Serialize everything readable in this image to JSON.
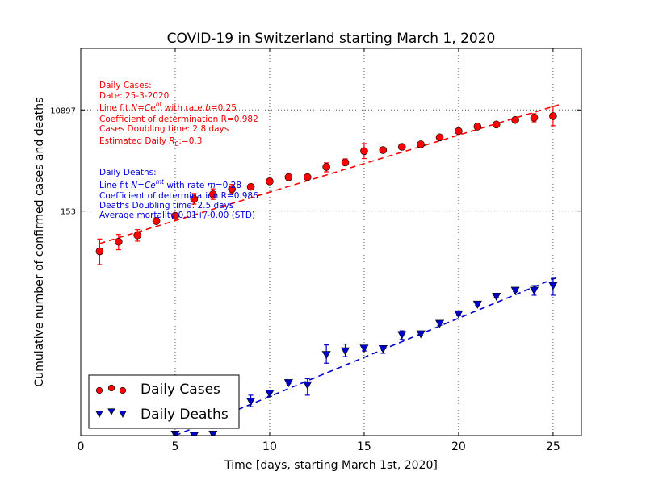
{
  "chart_data": {
    "type": "scatter",
    "title": "COVID-19 in Switzerland starting March 1, 2020",
    "xlabel": "Time [days, starting March 1st, 2020]",
    "ylabel": "Cumulative number of confirmed cases and deaths",
    "xlim": [
      0,
      26.5
    ],
    "ylim_log": [
      0.0118,
      146000
    ],
    "yscale": "log",
    "x_ticks": [
      0,
      5,
      10,
      15,
      20,
      25
    ],
    "y_ticks": [
      153,
      10897
    ],
    "grid": true,
    "legend": "bottom-left",
    "series": [
      {
        "name": "Daily Cases",
        "color": "#ff0000",
        "marker": "circle",
        "x": [
          1,
          2,
          3,
          4,
          5,
          6,
          7,
          8,
          9,
          10,
          11,
          12,
          13,
          14,
          15,
          16,
          17,
          18,
          19,
          20,
          21,
          22,
          23,
          24,
          25
        ],
        "y": [
          28,
          42,
          55,
          100,
          125,
          253,
          310,
          385,
          425,
          535,
          640,
          640,
          985,
          1190,
          1920,
          2000,
          2300,
          2550,
          3420,
          4460,
          5400,
          5890,
          7140,
          7860,
          8400
        ],
        "err_low": [
          16,
          30,
          43,
          90,
          113,
          205,
          250,
          320,
          390,
          480,
          560,
          610,
          800,
          1050,
          1400,
          1800,
          2120,
          2400,
          3200,
          4300,
          5200,
          5600,
          6450,
          6600,
          5600
        ],
        "err_high": [
          47,
          57,
          70,
          115,
          140,
          320,
          390,
          470,
          460,
          600,
          760,
          680,
          1170,
          1380,
          2640,
          2250,
          2500,
          2700,
          3600,
          4700,
          5600,
          6150,
          7800,
          9300,
          12600
        ]
      },
      {
        "name": "Daily Deaths",
        "color": "#0000cc",
        "marker": "triangle-down",
        "x": [
          5,
          6,
          7,
          9,
          10,
          11,
          12,
          13,
          14,
          15,
          16,
          17,
          18,
          19,
          20,
          21,
          22,
          23,
          24,
          25
        ],
        "y": [
          0.0125,
          0.0118,
          0.0125,
          0.05,
          0.07,
          0.11,
          0.1,
          0.36,
          0.42,
          0.47,
          0.46,
          0.83,
          0.86,
          1.34,
          2.0,
          3.0,
          4.2,
          5.4,
          5.4,
          6.6
        ],
        "err_low": [
          0.011,
          0.011,
          0.011,
          0.04,
          0.062,
          0.105,
          0.065,
          0.25,
          0.33,
          0.42,
          0.38,
          0.68,
          0.8,
          1.24,
          1.86,
          2.86,
          4.0,
          5.1,
          4.4,
          4.4
        ],
        "err_high": [
          0.014,
          0.013,
          0.014,
          0.065,
          0.076,
          0.116,
          0.13,
          0.54,
          0.56,
          0.52,
          0.52,
          0.98,
          0.92,
          1.44,
          2.16,
          3.16,
          4.4,
          5.7,
          6.6,
          8.9
        ]
      }
    ],
    "fits": [
      {
        "name": "cases-fit",
        "color": "#ff0000",
        "x": [
          1,
          25.3
        ],
        "y": [
          39,
          13500
        ]
      },
      {
        "name": "deaths-fit",
        "color": "#0000cc",
        "x": [
          5,
          25.3
        ],
        "y": [
          0.0118,
          9.6
        ]
      }
    ],
    "legend_entries": [
      {
        "label": "Daily Cases",
        "color": "#ff0000",
        "marker": "circle"
      },
      {
        "label": "Daily Deaths",
        "color": "#0000cc",
        "marker": "triangle-down"
      }
    ],
    "annotations": {
      "cases": {
        "header": "Daily Cases:",
        "date": "Date: 25-3-2020",
        "fit_prefix": "Line fit ",
        "fit_formula_N": "N",
        "fit_formula_eq": "=",
        "fit_formula_C": "Ce",
        "fit_formula_exp": "bt",
        "fit_mid": " with rate ",
        "fit_var": "b",
        "fit_value": "=0.25",
        "r": "Coefficient of determination R=0.982",
        "doubling": "Cases Doubling time: 2.8 days",
        "r0_prefix": "Estimated Daily ",
        "r0_var": "R",
        "r0_sub": "0",
        "r0_value": ":=0.3"
      },
      "deaths": {
        "header": "Daily Deaths:",
        "fit_prefix": "Line fit ",
        "fit_formula_N": "N",
        "fit_formula_eq": "=",
        "fit_formula_C": "Ce",
        "fit_formula_exp": "mt",
        "fit_mid": " with rate ",
        "fit_var": "m",
        "fit_value": "=0.28",
        "r": "Coefficient of determination R=0.986",
        "doubling": "Deaths Doubling time: 2.5 days",
        "mortality": "Average mortality 0.01+/-0.00 (STD)"
      }
    }
  }
}
